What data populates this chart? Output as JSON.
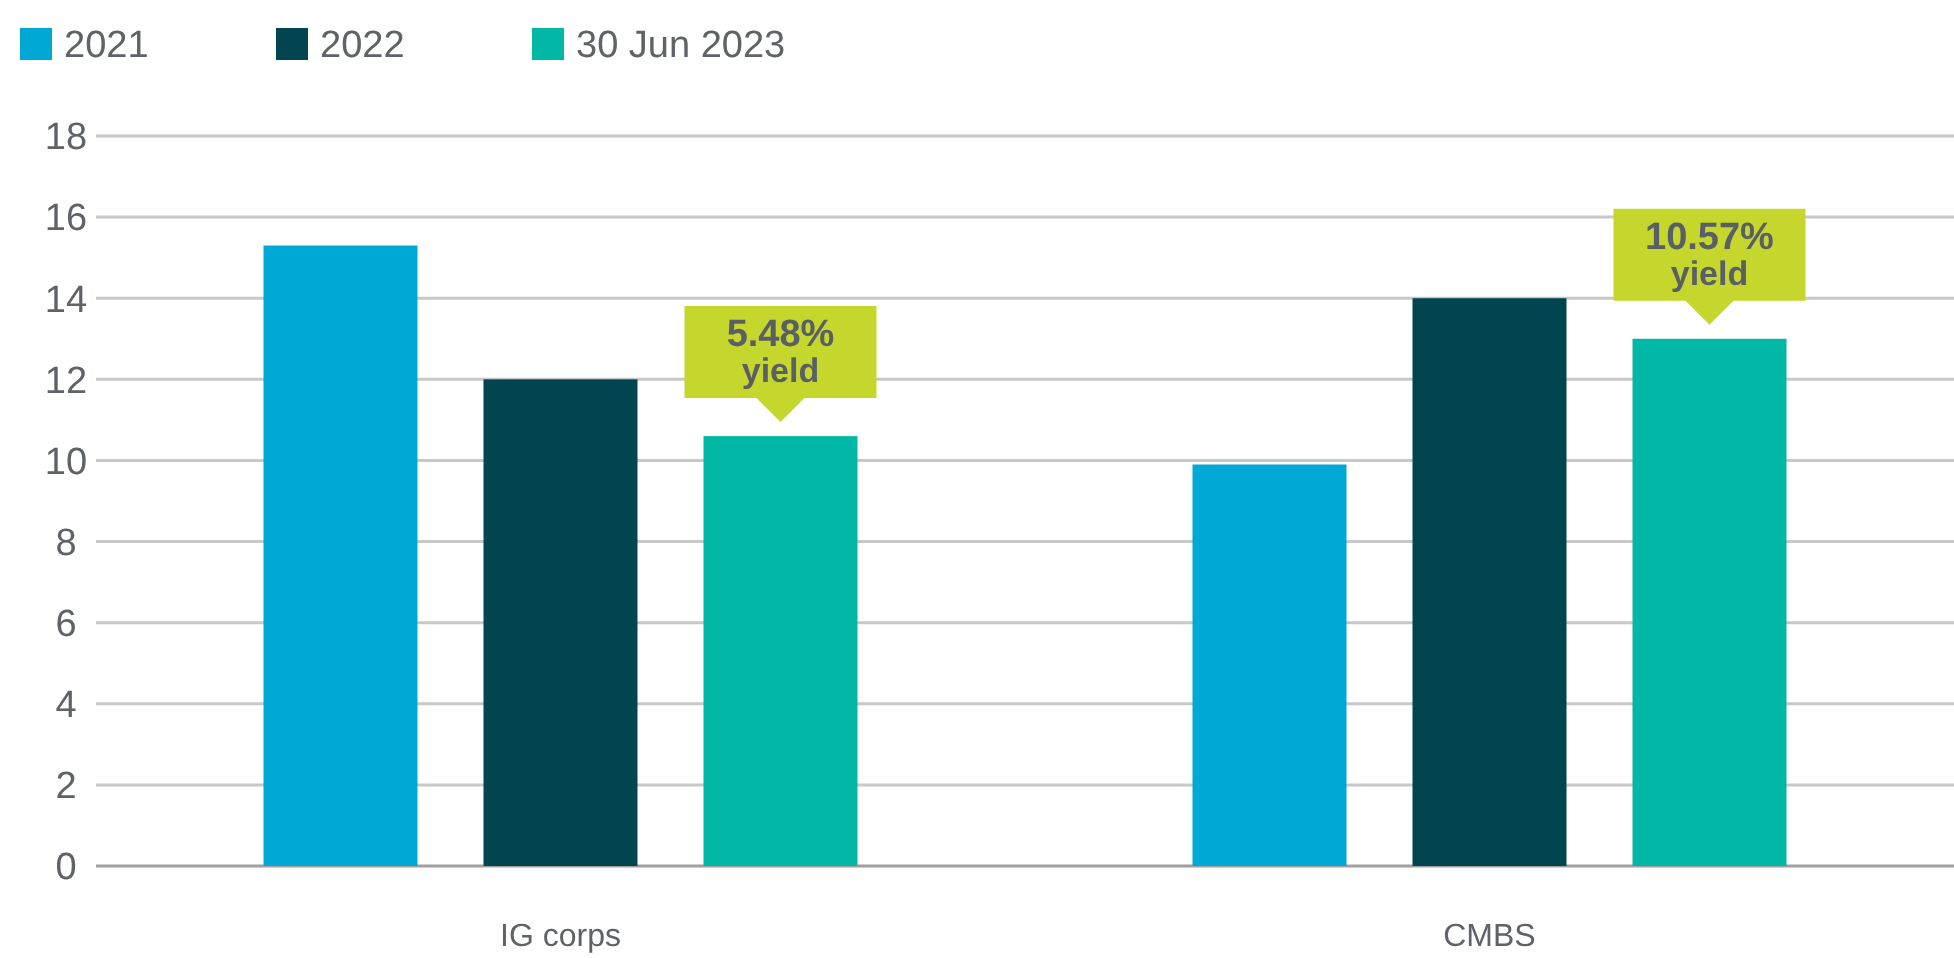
{
  "chart_data": {
    "type": "bar",
    "categories": [
      "IG corps",
      "CMBS"
    ],
    "series": [
      {
        "name": "2021",
        "color": "#00a8d6",
        "values": [
          15.3,
          9.9
        ]
      },
      {
        "name": "2022",
        "color": "#00454f",
        "values": [
          12.0,
          14.0
        ]
      },
      {
        "name": "30 Jun 2023",
        "color": "#00b8a5",
        "values": [
          10.6,
          13.0
        ]
      }
    ],
    "ylim": [
      0,
      18
    ],
    "yticks": [
      0,
      2,
      4,
      6,
      8,
      10,
      12,
      14,
      16,
      18
    ],
    "grid": "y",
    "legend": "top left",
    "annotations": [
      "5.48% yield",
      "10.57% yield"
    ]
  }
}
